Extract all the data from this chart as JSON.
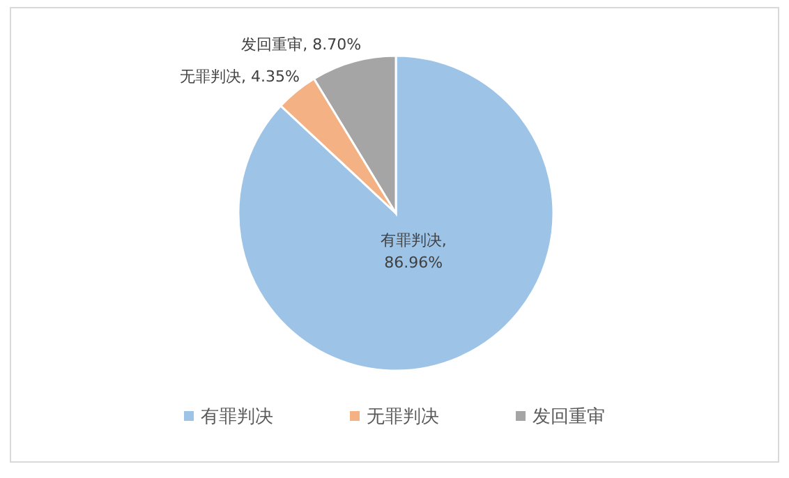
{
  "chart_data": {
    "type": "pie",
    "categories": [
      "有罪判决",
      "无罪判决",
      "发回重审"
    ],
    "values": [
      86.96,
      4.35,
      8.7
    ],
    "colors": [
      "#9dc3e6",
      "#f4b183",
      "#a5a5a5"
    ],
    "value_labels": [
      "有罪判决, 86.96%",
      "无罪判决, 4.35%",
      "发回重审, 8.70%"
    ],
    "legend": "bottom"
  }
}
